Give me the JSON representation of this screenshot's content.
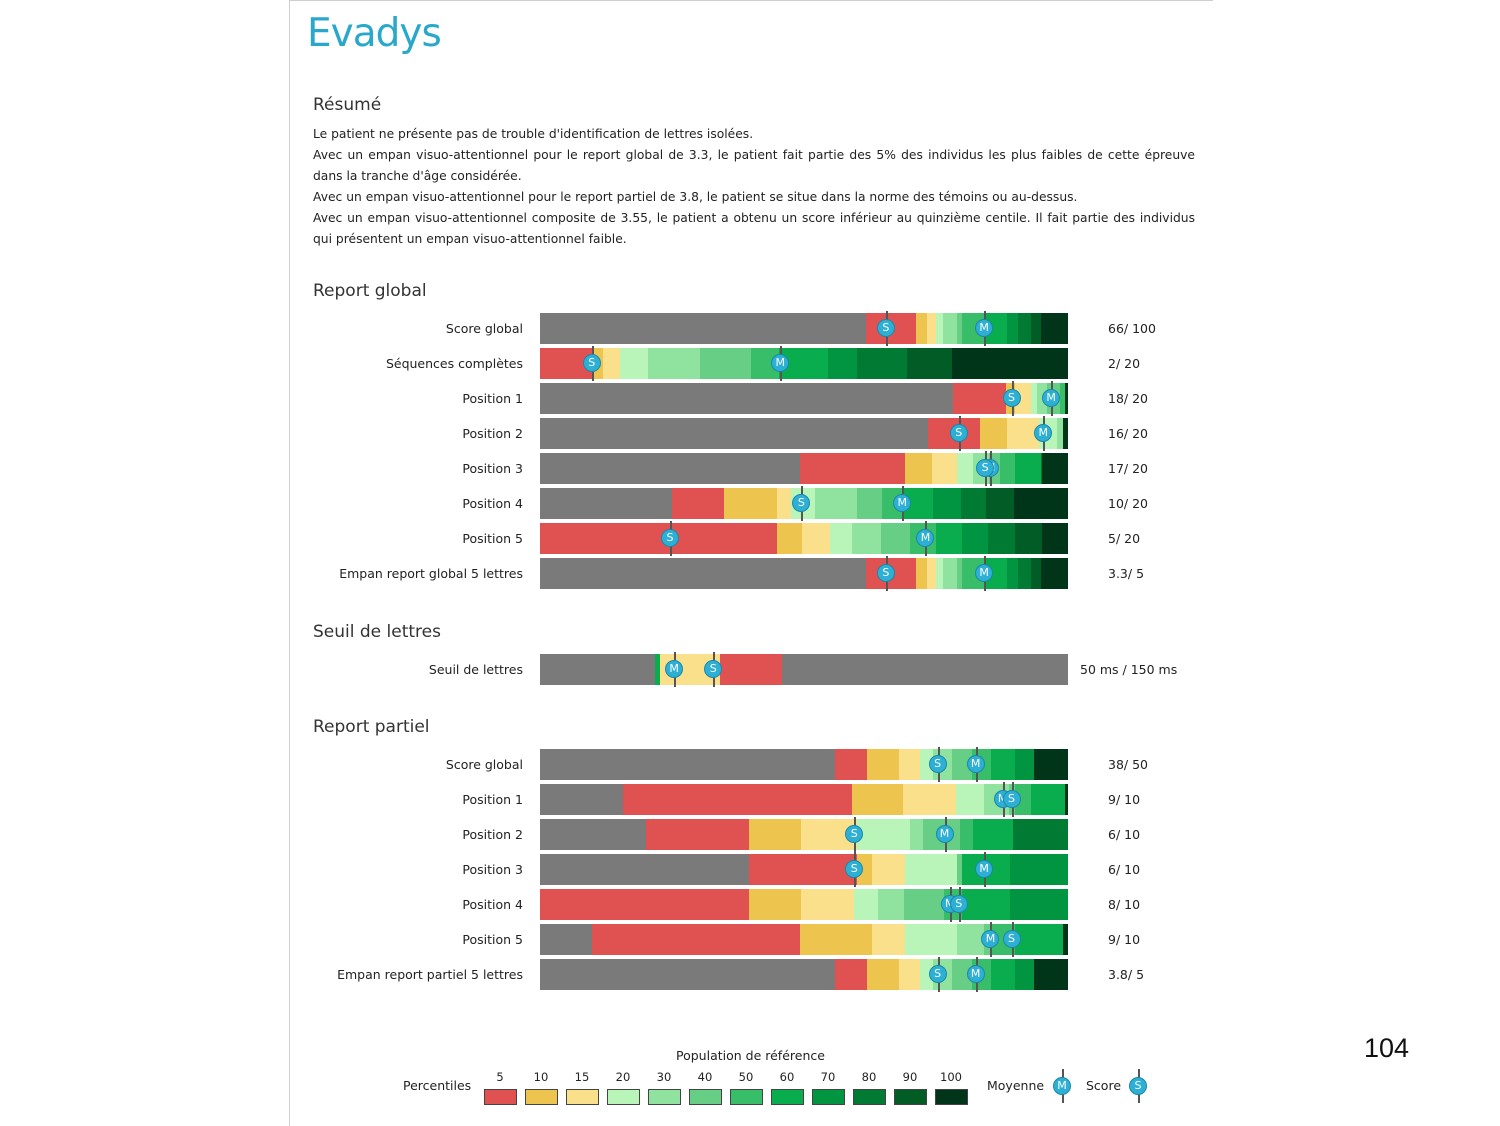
{
  "logo": "Evadys",
  "page_number": "104",
  "summary": {
    "title": "Résumé",
    "paragraphs": [
      "Le patient ne présente pas de trouble d'identification de lettres isolées.",
      "Avec un empan visuo-attentionnel pour le report global de 3.3, le patient fait partie des 5% des individus les plus faibles de cette épreuve dans la tranche d'âge considérée.",
      "Avec un empan visuo-attentionnel pour le report partiel de 3.8, le patient se situe dans la norme des témoins ou au-dessus.",
      "Avec un empan visuo-attentionnel composite de 3.55, le patient a obtenu un score inférieur au quinzième centile. Il fait partie des individus qui présentent un empan visuo-attentionnel faible."
    ]
  },
  "colors": {
    "gray": "#7a7a7a",
    "p5": "#e05252",
    "p10": "#ecc44e",
    "p15": "#fbe08c",
    "p20": "#b9f5b9",
    "p30": "#8fe39f",
    "p40": "#66cf85",
    "p50": "#38be68",
    "p60": "#0aad4e",
    "p70": "#019441",
    "p80": "#017a33",
    "p90": "#015c25",
    "p100": "#00351a"
  },
  "legend": {
    "title": "Population de référence",
    "percentiles_label": "Percentiles",
    "ticks": [
      "5",
      "10",
      "15",
      "20",
      "30",
      "40",
      "50",
      "60",
      "70",
      "80",
      "90",
      "100"
    ],
    "moyenne_label": "Moyenne",
    "score_label": "Score",
    "m_letter": "M",
    "s_letter": "S"
  },
  "chart_data": [
    {
      "type": "bar",
      "title": "Report global",
      "rows": [
        {
          "label": "Score global",
          "value": "66/ 100",
          "segments": [
            [
              "gray",
              0,
              0.618
            ],
            [
              "p5",
              0.618,
              0.713
            ],
            [
              "p10",
              0.713,
              0.733
            ],
            [
              "p15",
              0.733,
              0.75
            ],
            [
              "p20",
              0.75,
              0.763
            ],
            [
              "p30",
              0.763,
              0.79
            ],
            [
              "p40",
              0.79,
              0.8
            ],
            [
              "p50",
              0.8,
              0.84
            ],
            [
              "p60",
              0.84,
              0.885
            ],
            [
              "p70",
              0.885,
              0.905
            ],
            [
              "p80",
              0.905,
              0.93
            ],
            [
              "p90",
              0.93,
              0.948
            ],
            [
              "p100",
              0.948,
              1
            ]
          ],
          "score": 0.657,
          "mean": 0.843
        },
        {
          "label": "Séquences complètes",
          "value": "2/ 20",
          "segments": [
            [
              "p5",
              0,
              0.1
            ],
            [
              "p10",
              0.1,
              0.12
            ],
            [
              "p15",
              0.12,
              0.152
            ],
            [
              "p20",
              0.152,
              0.205
            ],
            [
              "p30",
              0.205,
              0.303
            ],
            [
              "p40",
              0.303,
              0.4
            ],
            [
              "p50",
              0.4,
              0.452
            ],
            [
              "p60",
              0.452,
              0.545
            ],
            [
              "p70",
              0.545,
              0.6
            ],
            [
              "p80",
              0.6,
              0.695
            ],
            [
              "p90",
              0.695,
              0.78
            ],
            [
              "p100",
              0.78,
              1
            ]
          ],
          "score": 0.1,
          "mean": 0.457
        },
        {
          "label": "Position 1",
          "value": "18/ 20",
          "segments": [
            [
              "gray",
              0,
              0.783
            ],
            [
              "p5",
              0.783,
              0.883
            ],
            [
              "p10",
              0.883,
              0.9
            ],
            [
              "p15",
              0.9,
              0.93
            ],
            [
              "p20",
              0.93,
              0.942
            ],
            [
              "p30",
              0.942,
              0.96
            ],
            [
              "p40",
              0.96,
              0.985
            ],
            [
              "p50",
              0.985,
              0.995
            ],
            [
              "p100",
              0.995,
              1
            ]
          ],
          "score": 0.895,
          "mean": 0.97
        },
        {
          "label": "Position 2",
          "value": "16/ 20",
          "segments": [
            [
              "gray",
              0,
              0.735
            ],
            [
              "p5",
              0.735,
              0.833
            ],
            [
              "p10",
              0.833,
              0.885
            ],
            [
              "p15",
              0.885,
              0.945
            ],
            [
              "p20",
              0.945,
              0.98
            ],
            [
              "p30",
              0.98,
              0.99
            ],
            [
              "p100",
              0.99,
              1
            ]
          ],
          "score": 0.795,
          "mean": 0.955
        },
        {
          "label": "Position 3",
          "value": "17/ 20",
          "segments": [
            [
              "gray",
              0,
              0.493
            ],
            [
              "p5",
              0.493,
              0.692
            ],
            [
              "p10",
              0.692,
              0.742
            ],
            [
              "p15",
              0.742,
              0.79
            ],
            [
              "p20",
              0.79,
              0.82
            ],
            [
              "p30",
              0.82,
              0.85
            ],
            [
              "p40",
              0.85,
              0.872
            ],
            [
              "p50",
              0.872,
              0.9
            ],
            [
              "p60",
              0.9,
              0.948
            ],
            [
              "p80",
              0.948,
              0.95
            ],
            [
              "p100",
              0.95,
              1
            ]
          ],
          "score": 0.845,
          "mean": 0.855
        },
        {
          "label": "Position 4",
          "value": "10/ 20",
          "segments": [
            [
              "gray",
              0,
              0.25
            ],
            [
              "p5",
              0.25,
              0.348
            ],
            [
              "p10",
              0.348,
              0.448
            ],
            [
              "p15",
              0.448,
              0.475
            ],
            [
              "p20",
              0.475,
              0.52
            ],
            [
              "p30",
              0.52,
              0.6
            ],
            [
              "p40",
              0.6,
              0.648
            ],
            [
              "p50",
              0.648,
              0.685
            ],
            [
              "p60",
              0.685,
              0.745
            ],
            [
              "p70",
              0.745,
              0.797
            ],
            [
              "p80",
              0.797,
              0.845
            ],
            [
              "p90",
              0.845,
              0.898
            ],
            [
              "p100",
              0.898,
              1
            ]
          ],
          "score": 0.497,
          "mean": 0.688
        },
        {
          "label": "Position 5",
          "value": "5/ 20",
          "segments": [
            [
              "p5",
              0,
              0.448
            ],
            [
              "p10",
              0.448,
              0.497
            ],
            [
              "p15",
              0.497,
              0.55
            ],
            [
              "p20",
              0.55,
              0.59
            ],
            [
              "p30",
              0.59,
              0.645
            ],
            [
              "p40",
              0.645,
              0.7
            ],
            [
              "p50",
              0.7,
              0.75
            ],
            [
              "p60",
              0.75,
              0.8
            ],
            [
              "p70",
              0.8,
              0.848
            ],
            [
              "p80",
              0.848,
              0.9
            ],
            [
              "p90",
              0.9,
              0.95
            ],
            [
              "p100",
              0.95,
              1
            ]
          ],
          "score": 0.248,
          "mean": 0.732
        },
        {
          "label": "Empan report global 5 lettres",
          "value": "3.3/ 5",
          "segments": [
            [
              "gray",
              0,
              0.618
            ],
            [
              "p5",
              0.618,
              0.713
            ],
            [
              "p10",
              0.713,
              0.733
            ],
            [
              "p15",
              0.733,
              0.75
            ],
            [
              "p20",
              0.75,
              0.763
            ],
            [
              "p30",
              0.763,
              0.79
            ],
            [
              "p40",
              0.79,
              0.8
            ],
            [
              "p50",
              0.8,
              0.84
            ],
            [
              "p60",
              0.84,
              0.885
            ],
            [
              "p70",
              0.885,
              0.905
            ],
            [
              "p80",
              0.905,
              0.93
            ],
            [
              "p90",
              0.93,
              0.948
            ],
            [
              "p100",
              0.948,
              1
            ]
          ],
          "score": 0.657,
          "mean": 0.843
        }
      ]
    },
    {
      "type": "bar",
      "title": "Seuil de lettres",
      "rows": [
        {
          "label": "Seuil de lettres",
          "value": "50 ms / 150 ms",
          "segments": [
            [
              "gray",
              0,
              0.218
            ],
            [
              "p60",
              0.218,
              0.228
            ],
            [
              "p15",
              0.228,
              0.34
            ],
            [
              "p5",
              0.34,
              0.458
            ],
            [
              "gray",
              0.458,
              1
            ]
          ],
          "score": 0.33,
          "mean": 0.256
        }
      ]
    },
    {
      "type": "bar",
      "title": "Report partiel",
      "rows": [
        {
          "label": "Score global",
          "value": "38/ 50",
          "segments": [
            [
              "gray",
              0,
              0.558
            ],
            [
              "p5",
              0.558,
              0.62
            ],
            [
              "p10",
              0.62,
              0.68
            ],
            [
              "p15",
              0.68,
              0.72
            ],
            [
              "p20",
              0.72,
              0.745
            ],
            [
              "p30",
              0.745,
              0.78
            ],
            [
              "p40",
              0.78,
              0.818
            ],
            [
              "p50",
              0.818,
              0.855
            ],
            [
              "p60",
              0.855,
              0.9
            ],
            [
              "p70",
              0.9,
              0.935
            ],
            [
              "p100",
              0.935,
              1
            ]
          ],
          "score": 0.755,
          "mean": 0.827
        },
        {
          "label": "Position 1",
          "value": "9/ 10",
          "segments": [
            [
              "gray",
              0,
              0.158
            ],
            [
              "p5",
              0.158,
              0.59
            ],
            [
              "p10",
              0.59,
              0.688
            ],
            [
              "p15",
              0.688,
              0.787
            ],
            [
              "p20",
              0.787,
              0.84
            ],
            [
              "p30",
              0.84,
              0.888
            ],
            [
              "p40",
              0.888,
              0.9
            ],
            [
              "p50",
              0.9,
              0.93
            ],
            [
              "p60",
              0.93,
              0.995
            ],
            [
              "p100",
              0.995,
              1
            ]
          ],
          "score": 0.895,
          "mean": 0.878
        },
        {
          "label": "Position 2",
          "value": "6/ 10",
          "segments": [
            [
              "gray",
              0,
              0.2
            ],
            [
              "p5",
              0.2,
              0.395
            ],
            [
              "p10",
              0.395,
              0.495
            ],
            [
              "p15",
              0.495,
              0.6
            ],
            [
              "p20",
              0.6,
              0.7
            ],
            [
              "p30",
              0.7,
              0.725
            ],
            [
              "p40",
              0.725,
              0.795
            ],
            [
              "p50",
              0.795,
              0.82
            ],
            [
              "p60",
              0.82,
              0.895
            ],
            [
              "p80",
              0.895,
              1
            ]
          ],
          "score": 0.597,
          "mean": 0.768
        },
        {
          "label": "Position 3",
          "value": "6/ 10",
          "segments": [
            [
              "gray",
              0,
              0.395
            ],
            [
              "p5",
              0.395,
              0.6
            ],
            [
              "p10",
              0.6,
              0.628
            ],
            [
              "p15",
              0.628,
              0.692
            ],
            [
              "p20",
              0.692,
              0.79
            ],
            [
              "p40",
              0.79,
              0.8
            ],
            [
              "p60",
              0.8,
              0.89
            ],
            [
              "p70",
              0.89,
              1
            ]
          ],
          "score": 0.597,
          "mean": 0.843
        },
        {
          "label": "Position 4",
          "value": "8/ 10",
          "segments": [
            [
              "p5",
              0,
              0.395
            ],
            [
              "p10",
              0.395,
              0.495
            ],
            [
              "p15",
              0.495,
              0.595
            ],
            [
              "p20",
              0.595,
              0.64
            ],
            [
              "p30",
              0.64,
              0.69
            ],
            [
              "p40",
              0.69,
              0.765
            ],
            [
              "p50",
              0.765,
              0.8
            ],
            [
              "p60",
              0.8,
              0.89
            ],
            [
              "p70",
              0.89,
              1
            ]
          ],
          "score": 0.795,
          "mean": 0.778
        },
        {
          "label": "Position 5",
          "value": "9/ 10",
          "segments": [
            [
              "gray",
              0,
              0.098
            ],
            [
              "p5",
              0.098,
              0.492
            ],
            [
              "p10",
              0.492,
              0.628
            ],
            [
              "p15",
              0.628,
              0.692
            ],
            [
              "p20",
              0.692,
              0.79
            ],
            [
              "p30",
              0.79,
              0.84
            ],
            [
              "p40",
              0.84,
              0.855
            ],
            [
              "p50",
              0.855,
              0.9
            ],
            [
              "p60",
              0.9,
              0.99
            ],
            [
              "p100",
              0.99,
              1
            ]
          ],
          "score": 0.895,
          "mean": 0.855
        },
        {
          "label": "Empan report partiel 5 lettres",
          "value": "3.8/ 5",
          "segments": [
            [
              "gray",
              0,
              0.558
            ],
            [
              "p5",
              0.558,
              0.62
            ],
            [
              "p10",
              0.62,
              0.68
            ],
            [
              "p15",
              0.68,
              0.72
            ],
            [
              "p20",
              0.72,
              0.745
            ],
            [
              "p30",
              0.745,
              0.78
            ],
            [
              "p40",
              0.78,
              0.818
            ],
            [
              "p50",
              0.818,
              0.855
            ],
            [
              "p60",
              0.855,
              0.9
            ],
            [
              "p70",
              0.9,
              0.935
            ],
            [
              "p100",
              0.935,
              1
            ]
          ],
          "score": 0.755,
          "mean": 0.827
        }
      ]
    }
  ]
}
